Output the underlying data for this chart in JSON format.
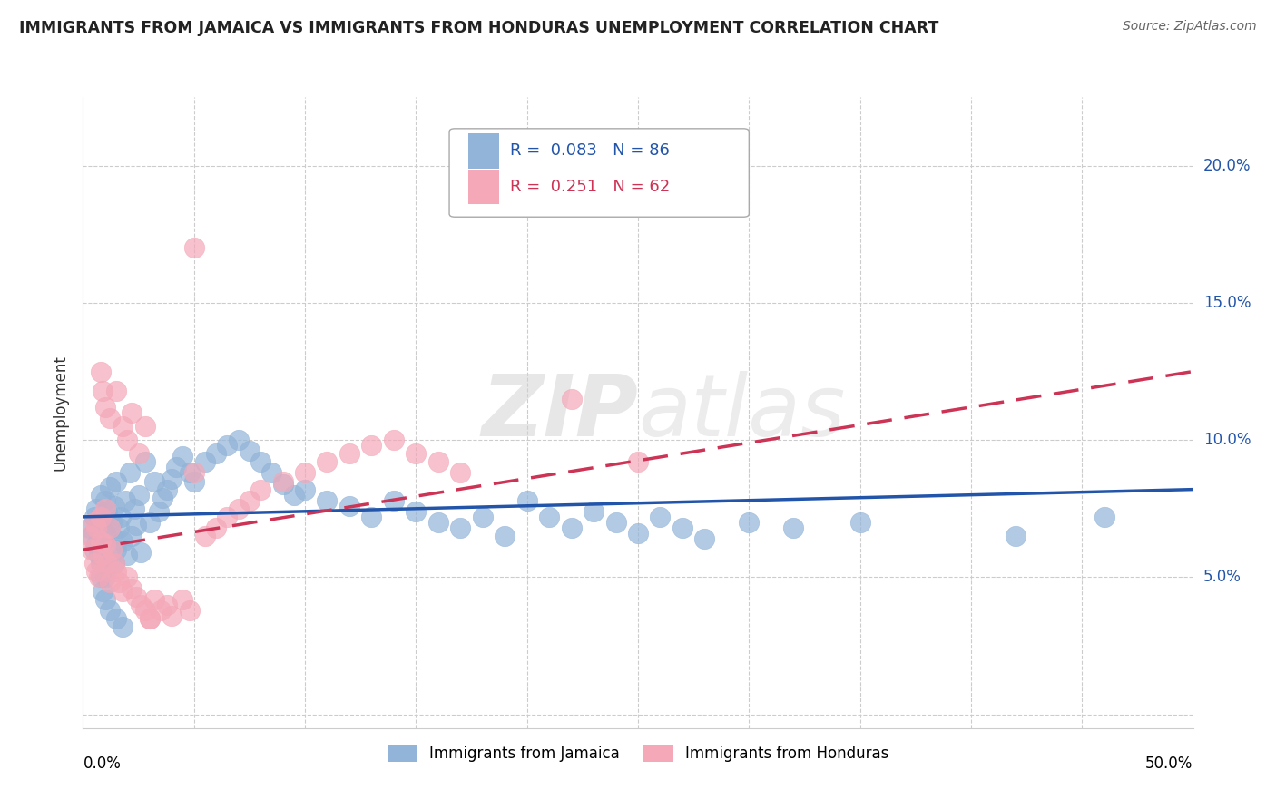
{
  "title": "IMMIGRANTS FROM JAMAICA VS IMMIGRANTS FROM HONDURAS UNEMPLOYMENT CORRELATION CHART",
  "source": "Source: ZipAtlas.com",
  "ylabel": "Unemployment",
  "legend_jamaica": "Immigrants from Jamaica",
  "legend_honduras": "Immigrants from Honduras",
  "r_jamaica": 0.083,
  "n_jamaica": 86,
  "r_honduras": 0.251,
  "n_honduras": 62,
  "color_jamaica": "#92B4D8",
  "color_honduras": "#F4A8B8",
  "line_color_jamaica": "#2255AA",
  "line_color_honduras": "#CC3355",
  "xmin": 0.0,
  "xmax": 0.5,
  "ymin": -0.005,
  "ymax": 0.225,
  "yticks": [
    0.0,
    0.05,
    0.1,
    0.15,
    0.2
  ],
  "ytick_labels": [
    "",
    "5.0%",
    "10.0%",
    "15.0%",
    "20.0%"
  ],
  "watermark_zip": "ZIP",
  "watermark_atlas": "atlas",
  "jamaica_x": [
    0.003,
    0.004,
    0.005,
    0.005,
    0.006,
    0.006,
    0.007,
    0.007,
    0.008,
    0.008,
    0.009,
    0.009,
    0.01,
    0.01,
    0.01,
    0.011,
    0.011,
    0.012,
    0.012,
    0.013,
    0.013,
    0.014,
    0.014,
    0.015,
    0.015,
    0.016,
    0.017,
    0.018,
    0.019,
    0.02,
    0.021,
    0.022,
    0.023,
    0.024,
    0.025,
    0.026,
    0.028,
    0.03,
    0.032,
    0.034,
    0.036,
    0.038,
    0.04,
    0.042,
    0.045,
    0.048,
    0.05,
    0.055,
    0.06,
    0.065,
    0.07,
    0.075,
    0.08,
    0.085,
    0.09,
    0.095,
    0.1,
    0.11,
    0.12,
    0.13,
    0.14,
    0.15,
    0.16,
    0.17,
    0.18,
    0.19,
    0.2,
    0.21,
    0.22,
    0.23,
    0.24,
    0.25,
    0.26,
    0.27,
    0.28,
    0.3,
    0.32,
    0.35,
    0.42,
    0.46,
    0.008,
    0.009,
    0.01,
    0.012,
    0.015,
    0.018
  ],
  "jamaica_y": [
    0.068,
    0.065,
    0.06,
    0.072,
    0.062,
    0.075,
    0.058,
    0.07,
    0.055,
    0.08,
    0.063,
    0.071,
    0.05,
    0.066,
    0.078,
    0.056,
    0.074,
    0.06,
    0.083,
    0.065,
    0.07,
    0.055,
    0.076,
    0.06,
    0.085,
    0.068,
    0.072,
    0.063,
    0.078,
    0.058,
    0.088,
    0.065,
    0.075,
    0.069,
    0.08,
    0.059,
    0.092,
    0.07,
    0.085,
    0.074,
    0.079,
    0.082,
    0.086,
    0.09,
    0.094,
    0.088,
    0.085,
    0.092,
    0.095,
    0.098,
    0.1,
    0.096,
    0.092,
    0.088,
    0.084,
    0.08,
    0.082,
    0.078,
    0.076,
    0.072,
    0.078,
    0.074,
    0.07,
    0.068,
    0.072,
    0.065,
    0.078,
    0.072,
    0.068,
    0.074,
    0.07,
    0.066,
    0.072,
    0.068,
    0.064,
    0.07,
    0.068,
    0.07,
    0.065,
    0.072,
    0.05,
    0.045,
    0.042,
    0.038,
    0.035,
    0.032
  ],
  "honduras_x": [
    0.003,
    0.004,
    0.005,
    0.005,
    0.006,
    0.006,
    0.007,
    0.008,
    0.008,
    0.009,
    0.01,
    0.01,
    0.011,
    0.012,
    0.012,
    0.013,
    0.014,
    0.015,
    0.016,
    0.018,
    0.02,
    0.022,
    0.024,
    0.026,
    0.028,
    0.03,
    0.032,
    0.035,
    0.038,
    0.04,
    0.045,
    0.048,
    0.05,
    0.055,
    0.06,
    0.065,
    0.07,
    0.075,
    0.08,
    0.09,
    0.1,
    0.11,
    0.12,
    0.13,
    0.14,
    0.15,
    0.16,
    0.17,
    0.22,
    0.25,
    0.008,
    0.009,
    0.01,
    0.012,
    0.015,
    0.018,
    0.02,
    0.022,
    0.025,
    0.028,
    0.05,
    0.03
  ],
  "honduras_y": [
    0.065,
    0.06,
    0.055,
    0.07,
    0.052,
    0.068,
    0.05,
    0.063,
    0.072,
    0.058,
    0.062,
    0.075,
    0.055,
    0.068,
    0.048,
    0.06,
    0.055,
    0.052,
    0.048,
    0.045,
    0.05,
    0.046,
    0.043,
    0.04,
    0.038,
    0.035,
    0.042,
    0.038,
    0.04,
    0.036,
    0.042,
    0.038,
    0.17,
    0.065,
    0.068,
    0.072,
    0.075,
    0.078,
    0.082,
    0.085,
    0.088,
    0.092,
    0.095,
    0.098,
    0.1,
    0.095,
    0.092,
    0.088,
    0.115,
    0.092,
    0.125,
    0.118,
    0.112,
    0.108,
    0.118,
    0.105,
    0.1,
    0.11,
    0.095,
    0.105,
    0.088,
    0.035
  ],
  "trend_j_x0": 0.0,
  "trend_j_x1": 0.5,
  "trend_j_y0": 0.072,
  "trend_j_y1": 0.082,
  "trend_h_x0": 0.0,
  "trend_h_x1": 0.5,
  "trend_h_y0": 0.06,
  "trend_h_y1": 0.125
}
